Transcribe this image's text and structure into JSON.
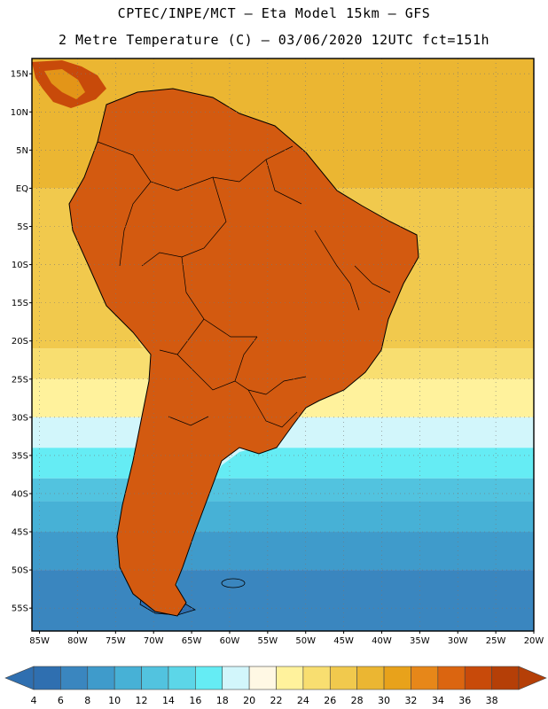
{
  "header": {
    "line1": "CPTEC/INPE/MCT –  Eta Model 15km – GFS",
    "line2": "2 Metre Temperature (C) – 03/06/2020 12UTC fct=151h"
  },
  "map": {
    "lon_range": [
      -86,
      -20
    ],
    "lat_range": [
      -58,
      17
    ],
    "lat_ticks": [
      {
        "value": 15,
        "label": "15N"
      },
      {
        "value": 10,
        "label": "10N"
      },
      {
        "value": 5,
        "label": "5N"
      },
      {
        "value": 0,
        "label": "EQ"
      },
      {
        "value": -5,
        "label": "5S"
      },
      {
        "value": -10,
        "label": "10S"
      },
      {
        "value": -15,
        "label": "15S"
      },
      {
        "value": -20,
        "label": "20S"
      },
      {
        "value": -25,
        "label": "25S"
      },
      {
        "value": -30,
        "label": "30S"
      },
      {
        "value": -35,
        "label": "35S"
      },
      {
        "value": -40,
        "label": "40S"
      },
      {
        "value": -45,
        "label": "45S"
      },
      {
        "value": -50,
        "label": "50S"
      },
      {
        "value": -55,
        "label": "55S"
      }
    ],
    "lon_ticks": [
      {
        "value": -85,
        "label": "85W"
      },
      {
        "value": -80,
        "label": "80W"
      },
      {
        "value": -75,
        "label": "75W"
      },
      {
        "value": -70,
        "label": "70W"
      },
      {
        "value": -65,
        "label": "65W"
      },
      {
        "value": -60,
        "label": "60W"
      },
      {
        "value": -55,
        "label": "55W"
      },
      {
        "value": -50,
        "label": "50W"
      },
      {
        "value": -45,
        "label": "45W"
      },
      {
        "value": -40,
        "label": "40W"
      },
      {
        "value": -35,
        "label": "35W"
      },
      {
        "value": -30,
        "label": "30W"
      },
      {
        "value": -25,
        "label": "25W"
      },
      {
        "value": -20,
        "label": "20W"
      }
    ],
    "ocean_bands": [
      {
        "lat_top": 17,
        "lat_bottom": 0,
        "temp": 28
      },
      {
        "lat_top": 0,
        "lat_bottom": -21,
        "temp": 26
      },
      {
        "lat_top": -21,
        "lat_bottom": -25,
        "temp": 24
      },
      {
        "lat_top": -25,
        "lat_bottom": -30,
        "temp": 22
      },
      {
        "lat_top": -30,
        "lat_bottom": -34,
        "temp": 18
      },
      {
        "lat_top": -34,
        "lat_bottom": -38,
        "temp": 16
      },
      {
        "lat_top": -38,
        "lat_bottom": -41,
        "temp": 12
      },
      {
        "lat_top": -41,
        "lat_bottom": -45,
        "temp": 10
      },
      {
        "lat_top": -45,
        "lat_bottom": -50,
        "temp": 8
      },
      {
        "lat_top": -50,
        "lat_bottom": -58,
        "temp": 6
      }
    ]
  },
  "colorbar": {
    "values": [
      4,
      6,
      8,
      10,
      12,
      14,
      16,
      18,
      20,
      22,
      24,
      26,
      28,
      30,
      32,
      34,
      36,
      38
    ],
    "colors": [
      "#2f6fb0",
      "#3a86bf",
      "#3f9bcb",
      "#47b1d6",
      "#52c3df",
      "#5cd6e8",
      "#65ecf4",
      "#d2f6fb",
      "#fff8e4",
      "#fff29c",
      "#f8de70",
      "#f1c94d",
      "#ebb632",
      "#e8a21b",
      "#e78719",
      "#db6510",
      "#c84a0a",
      "#b53f07"
    ]
  },
  "country_labels": []
}
